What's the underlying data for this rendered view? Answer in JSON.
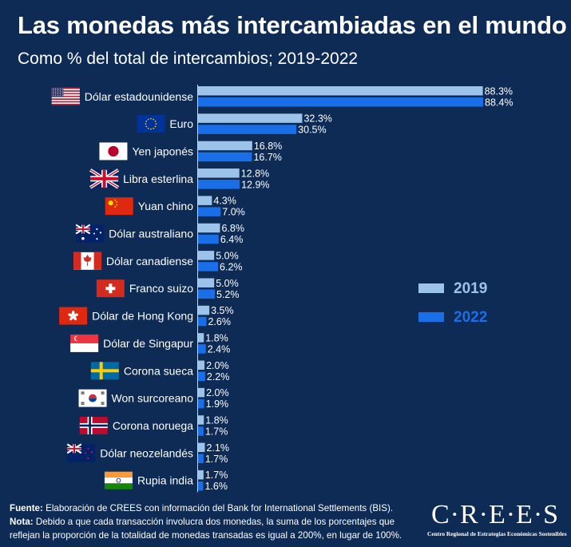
{
  "title": "Las monedas más intercambiadas en el mundo",
  "subtitle": "Como % del total de intercambios; 2019-2022",
  "chart_data": {
    "type": "bar",
    "orientation": "horizontal",
    "categories": [
      "Dólar estadounidense",
      "Euro",
      "Yen japonés",
      "Libra esterlina",
      "Yuan chino",
      "Dólar australiano",
      "Dólar canadiense",
      "Franco suizo",
      "Dólar de Hong Kong",
      "Dólar de Singapur",
      "Corona sueca",
      "Won surcoreano",
      "Corona noruega",
      "Dólar neozelandés",
      "Rupia india"
    ],
    "flags": [
      "us",
      "eu",
      "jp",
      "gb",
      "cn",
      "au",
      "ca",
      "ch",
      "hk",
      "sg",
      "se",
      "kr",
      "no",
      "nz",
      "in"
    ],
    "series": [
      {
        "name": "2019",
        "color": "#9cc3ea",
        "values": [
          88.3,
          32.3,
          16.8,
          12.8,
          4.3,
          6.8,
          5.0,
          5.0,
          3.5,
          1.8,
          2.0,
          2.0,
          1.8,
          2.1,
          1.7
        ],
        "labels": [
          "88.3%",
          "32.3%",
          "16.8%",
          "12.8%",
          "4.3%",
          "6.8%",
          "5.0%",
          "5.0%",
          "3.5%",
          "1.8%",
          "2.0%",
          "2.0%",
          "1.8%",
          "2.1%",
          "1.7%"
        ]
      },
      {
        "name": "2022",
        "color": "#1a6fe8",
        "values": [
          88.4,
          30.5,
          16.7,
          12.9,
          7.0,
          6.4,
          6.2,
          5.2,
          2.6,
          2.4,
          2.2,
          1.9,
          1.7,
          1.7,
          1.6
        ],
        "labels": [
          "88.4%",
          "30.5%",
          "16.7%",
          "12.9%",
          "7.0%",
          "6.4%",
          "6.2%",
          "5.2%",
          "2.6%",
          "2.4%",
          "2.2%",
          "1.9%",
          "1.7%",
          "1.7%",
          "1.6%"
        ]
      }
    ],
    "xlim": [
      0,
      88.4
    ],
    "legend_position": "right"
  },
  "footer": {
    "fuente_label": "Fuente:",
    "fuente_text": " Elaboración de CREES con información del Bank for International Settlements (BIS).",
    "nota_label": "Nota:",
    "nota_text": " Debido a que cada transacción involucra dos monedas, la suma de los  porcentajes que reflejan la proporción de la totalidad de monedas transadas es igual a 200%, en lugar de 100%."
  },
  "logo": {
    "word": "C·R·E·E·S",
    "subtitle": "Centro Regional de Estrategias Económicas Sostenibles"
  }
}
